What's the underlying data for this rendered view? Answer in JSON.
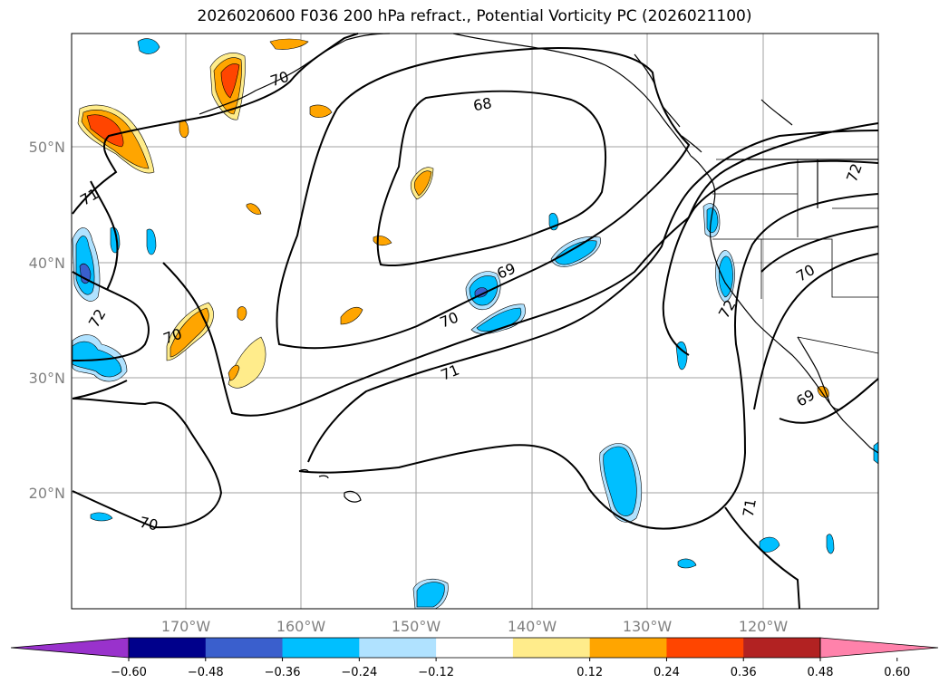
{
  "title": "2026020600 F036 200 hPa refract., Potential Vorticity PC (2026021100)",
  "map": {
    "lon_labels": [
      "170°W",
      "160°W",
      "150°W",
      "140°W",
      "130°W",
      "120°W"
    ],
    "lat_labels": [
      "50°N",
      "40°N",
      "30°N",
      "20°N"
    ],
    "contour_labels": [
      "68",
      "69",
      "70",
      "70",
      "70",
      "70",
      "71",
      "71",
      "71",
      "72",
      "72",
      "72",
      "69",
      "70"
    ]
  },
  "colorbar": {
    "ticks": [
      "−0.60",
      "−0.48",
      "−0.36",
      "−0.24",
      "−0.12",
      "0.12",
      "0.24",
      "0.36",
      "0.48",
      "0.60"
    ],
    "colors": [
      "#9932cc",
      "#00008b",
      "#3a5fcd",
      "#00bfff",
      "#b0e2ff",
      "#ffffff",
      "#ffec8b",
      "#ffa500",
      "#ff4500",
      "#b22222",
      "#ff82ab"
    ]
  },
  "colors": {
    "coast": "#000000",
    "grid": "#a0a0a0",
    "tick_text": "#808080"
  }
}
